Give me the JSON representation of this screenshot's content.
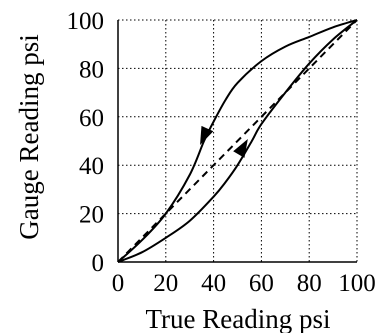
{
  "chart_data": {
    "type": "line",
    "xlabel": "True Reading psi",
    "ylabel": "Gauge Reading psi",
    "xlim": [
      0,
      100
    ],
    "ylim": [
      0,
      100
    ],
    "x_ticks": [
      0,
      20,
      40,
      60,
      80,
      100
    ],
    "y_ticks": [
      0,
      20,
      40,
      60,
      80,
      100
    ],
    "grid": true,
    "series": [
      {
        "role": "hysteresis-upper-curve",
        "style": "solid",
        "arrow_direction": "decreasing",
        "x": [
          0,
          10,
          20,
          30,
          36,
          40,
          45,
          50,
          60,
          70,
          80,
          90,
          100
        ],
        "y": [
          0,
          9,
          20,
          36,
          50,
          58,
          67,
          74,
          83,
          89,
          93,
          97,
          100
        ]
      },
      {
        "role": "hysteresis-lower-curve",
        "style": "solid",
        "arrow_direction": "increasing",
        "x": [
          0,
          10,
          20,
          30,
          40,
          45,
          50,
          56,
          60,
          70,
          80,
          90,
          100
        ],
        "y": [
          0,
          4,
          10,
          17,
          27,
          33,
          40,
          50,
          57,
          70,
          82,
          92,
          100
        ]
      },
      {
        "role": "ideal-linear-reference",
        "style": "dashed",
        "x": [
          0,
          100
        ],
        "y": [
          0,
          100
        ]
      }
    ],
    "colors": {
      "line": "#000000",
      "grid": "#000000",
      "background": "#ffffff"
    }
  }
}
